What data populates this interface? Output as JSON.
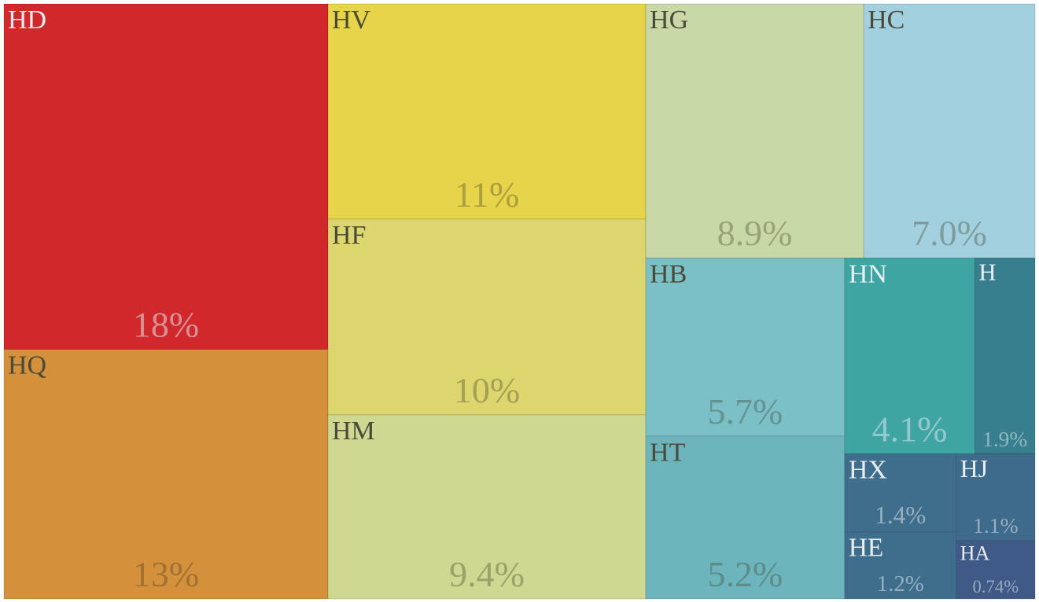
{
  "chart_data": {
    "type": "treemap",
    "categories": [
      "HD",
      "HQ",
      "HV",
      "HF",
      "HM",
      "HG",
      "HC",
      "HB",
      "HT",
      "HN",
      "H",
      "HX",
      "HE",
      "HJ",
      "HA"
    ],
    "values": [
      18,
      13,
      11,
      10,
      9.4,
      8.9,
      7.0,
      5.7,
      5.2,
      4.1,
      1.9,
      1.4,
      1.2,
      1.1,
      0.74
    ],
    "value_labels": [
      "18%",
      "13%",
      "11%",
      "10%",
      "9.4%",
      "8.9%",
      "7.0%",
      "5.7%",
      "5.2%",
      "4.1%",
      "1.9%",
      "1.4%",
      "1.2%",
      "1.1%",
      "0.74%"
    ],
    "colors": [
      "#d0282b",
      "#d4903a",
      "#e8d44a",
      "#ddd66f",
      "#cfd890",
      "#c8d9a6",
      "#a2d0de",
      "#7bbfc7",
      "#6db5bd",
      "#3ea5a3",
      "#377e8e",
      "#3e6e8c",
      "#3e6e8c",
      "#3e6a8c",
      "#405a88"
    ]
  }
}
